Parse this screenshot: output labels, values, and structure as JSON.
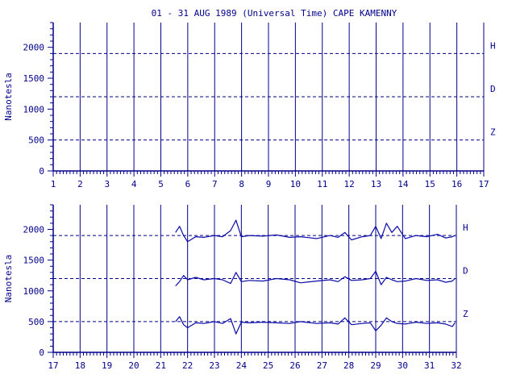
{
  "colors": {
    "ink": "#00008b",
    "trace": "#0a0aa8",
    "background": "#ffffff"
  },
  "chart_data": {
    "type": "line",
    "title": "01 - 31 AUG 1989 (Universal Time) CAPE KAMENNY",
    "ylabel": "Nanotesla",
    "ylim": [
      0,
      2400
    ],
    "y_ticks": [
      0,
      500,
      1000,
      1500,
      2000
    ],
    "y_tick_labels": [
      "0",
      "500",
      "1000",
      "1500",
      "2000"
    ],
    "component_labels": [
      "H",
      "D",
      "Z"
    ],
    "baselines": {
      "H": 1900,
      "D": 1200,
      "Z": 500
    },
    "panels": [
      {
        "xlim": [
          1,
          17
        ],
        "x_tick_labels": [
          "1",
          "2",
          "3",
          "4",
          "5",
          "6",
          "7",
          "8",
          "9",
          "10",
          "11",
          "12",
          "13",
          "14",
          "15",
          "16",
          "17"
        ],
        "series": []
      },
      {
        "xlim": [
          17,
          32
        ],
        "x_tick_labels": [
          "17",
          "18",
          "19",
          "20",
          "21",
          "22",
          "23",
          "24",
          "25",
          "26",
          "27",
          "28",
          "29",
          "30",
          "31",
          "32"
        ],
        "series": [
          {
            "component": "H",
            "x": [
              21.55,
              21.7,
              21.85,
              22.0,
              22.3,
              22.6,
              23.0,
              23.3,
              23.6,
              23.8,
              24.0,
              24.3,
              24.8,
              25.3,
              25.8,
              26.2,
              26.8,
              27.3,
              27.6,
              27.85,
              28.1,
              28.5,
              28.8,
              29.0,
              29.2,
              29.4,
              29.6,
              29.8,
              30.1,
              30.5,
              30.9,
              31.3,
              31.6,
              31.85,
              31.95
            ],
            "y": [
              1950,
              2050,
              1900,
              1800,
              1880,
              1870,
              1900,
              1880,
              1980,
              2150,
              1880,
              1900,
              1890,
              1910,
              1870,
              1880,
              1850,
              1900,
              1870,
              1950,
              1830,
              1880,
              1900,
              2050,
              1850,
              2100,
              1950,
              2050,
              1850,
              1900,
              1880,
              1920,
              1860,
              1880,
              1900
            ]
          },
          {
            "component": "D",
            "x": [
              21.55,
              21.7,
              21.85,
              22.0,
              22.3,
              22.6,
              23.0,
              23.3,
              23.6,
              23.8,
              24.0,
              24.3,
              24.8,
              25.3,
              25.8,
              26.2,
              26.8,
              27.3,
              27.6,
              27.85,
              28.1,
              28.5,
              28.8,
              29.0,
              29.2,
              29.4,
              29.6,
              29.8,
              30.1,
              30.5,
              30.9,
              31.3,
              31.6,
              31.85,
              31.95
            ],
            "y": [
              1080,
              1150,
              1250,
              1180,
              1220,
              1180,
              1200,
              1180,
              1120,
              1300,
              1150,
              1170,
              1160,
              1200,
              1180,
              1130,
              1160,
              1180,
              1150,
              1230,
              1170,
              1180,
              1200,
              1320,
              1100,
              1220,
              1180,
              1150,
              1160,
              1200,
              1170,
              1180,
              1140,
              1160,
              1200
            ]
          },
          {
            "component": "Z",
            "x": [
              21.55,
              21.7,
              21.85,
              22.0,
              22.3,
              22.6,
              23.0,
              23.3,
              23.6,
              23.8,
              24.0,
              24.3,
              24.8,
              25.3,
              25.8,
              26.2,
              26.8,
              27.3,
              27.6,
              27.85,
              28.1,
              28.5,
              28.8,
              29.0,
              29.2,
              29.4,
              29.6,
              29.8,
              30.1,
              30.5,
              30.9,
              31.3,
              31.6,
              31.85,
              31.95
            ],
            "y": [
              500,
              580,
              450,
              400,
              480,
              470,
              500,
              470,
              550,
              300,
              490,
              480,
              490,
              480,
              470,
              500,
              470,
              480,
              460,
              560,
              450,
              470,
              480,
              350,
              440,
              560,
              500,
              470,
              460,
              490,
              470,
              480,
              460,
              420,
              480
            ]
          }
        ]
      }
    ]
  }
}
